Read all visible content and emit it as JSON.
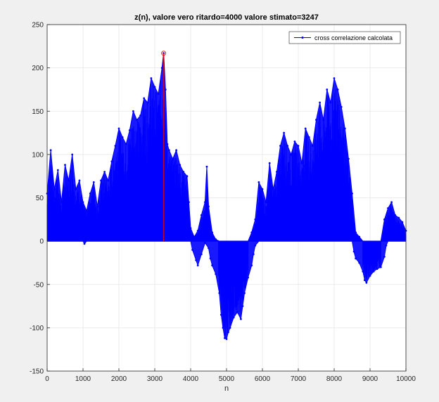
{
  "chart_data": {
    "type": "line",
    "title": "z(n), valore vero ritardo=4000 valore stimato=3247",
    "xlabel": "n",
    "ylabel": "",
    "xlim": [
      0,
      10000
    ],
    "ylim": [
      -150,
      250
    ],
    "xticks": [
      "0",
      "1000",
      "2000",
      "3000",
      "4000",
      "5000",
      "6000",
      "7000",
      "8000",
      "9000",
      "10000"
    ],
    "yticks": [
      "250",
      "200",
      "150",
      "100",
      "50",
      "0",
      "-50",
      "-100",
      "-150"
    ],
    "grid": true,
    "legend_position": "top-right",
    "series": [
      {
        "name": "cross correlazione calcolata",
        "color": "#0000ff",
        "marker": "dot",
        "style": "stem",
        "envelope_top": [
          [
            0,
            55
          ],
          [
            100,
            105
          ],
          [
            200,
            60
          ],
          [
            300,
            82
          ],
          [
            400,
            45
          ],
          [
            500,
            88
          ],
          [
            600,
            70
          ],
          [
            700,
            100
          ],
          [
            800,
            60
          ],
          [
            900,
            70
          ],
          [
            1000,
            45
          ],
          [
            1100,
            35
          ],
          [
            1200,
            55
          ],
          [
            1300,
            68
          ],
          [
            1400,
            40
          ],
          [
            1500,
            70
          ],
          [
            1600,
            80
          ],
          [
            1700,
            70
          ],
          [
            1800,
            92
          ],
          [
            1900,
            110
          ],
          [
            2000,
            130
          ],
          [
            2100,
            120
          ],
          [
            2200,
            112
          ],
          [
            2300,
            128
          ],
          [
            2400,
            150
          ],
          [
            2500,
            140
          ],
          [
            2600,
            145
          ],
          [
            2700,
            165
          ],
          [
            2800,
            160
          ],
          [
            2900,
            188
          ],
          [
            3000,
            178
          ],
          [
            3100,
            170
          ],
          [
            3200,
            200
          ],
          [
            3247,
            217
          ],
          [
            3300,
            175
          ],
          [
            3350,
            112
          ],
          [
            3400,
            105
          ],
          [
            3500,
            95
          ],
          [
            3600,
            105
          ],
          [
            3700,
            88
          ],
          [
            3800,
            80
          ],
          [
            3900,
            75
          ],
          [
            3950,
            45
          ],
          [
            4000,
            15
          ],
          [
            4100,
            5
          ],
          [
            4200,
            12
          ],
          [
            4300,
            30
          ],
          [
            4400,
            45
          ],
          [
            4450,
            86
          ],
          [
            4500,
            40
          ],
          [
            4600,
            10
          ],
          [
            4700,
            2
          ],
          [
            4800,
            0
          ],
          [
            4900,
            0
          ],
          [
            5000,
            0
          ],
          [
            5100,
            0
          ],
          [
            5200,
            0
          ],
          [
            5300,
            0
          ],
          [
            5400,
            0
          ],
          [
            5500,
            0
          ],
          [
            5600,
            0
          ],
          [
            5700,
            10
          ],
          [
            5800,
            25
          ],
          [
            5900,
            68
          ],
          [
            6000,
            60
          ],
          [
            6100,
            45
          ],
          [
            6200,
            90
          ],
          [
            6300,
            60
          ],
          [
            6400,
            80
          ],
          [
            6500,
            110
          ],
          [
            6600,
            125
          ],
          [
            6700,
            110
          ],
          [
            6800,
            100
          ],
          [
            6900,
            115
          ],
          [
            7000,
            110
          ],
          [
            7100,
            90
          ],
          [
            7200,
            130
          ],
          [
            7300,
            120
          ],
          [
            7400,
            110
          ],
          [
            7500,
            140
          ],
          [
            7600,
            160
          ],
          [
            7700,
            140
          ],
          [
            7800,
            175
          ],
          [
            7900,
            160
          ],
          [
            8000,
            188
          ],
          [
            8100,
            175
          ],
          [
            8200,
            155
          ],
          [
            8300,
            130
          ],
          [
            8400,
            95
          ],
          [
            8500,
            55
          ],
          [
            8600,
            10
          ],
          [
            8700,
            5
          ],
          [
            8800,
            0
          ],
          [
            8900,
            0
          ],
          [
            9000,
            0
          ],
          [
            9100,
            0
          ],
          [
            9200,
            0
          ],
          [
            9300,
            0
          ],
          [
            9400,
            25
          ],
          [
            9500,
            38
          ],
          [
            9600,
            45
          ],
          [
            9700,
            30
          ],
          [
            9800,
            27
          ],
          [
            9900,
            22
          ],
          [
            10000,
            12
          ]
        ],
        "envelope_bottom": [
          [
            0,
            0
          ],
          [
            1000,
            0
          ],
          [
            1040,
            -3
          ],
          [
            1100,
            0
          ],
          [
            2000,
            0
          ],
          [
            3000,
            0
          ],
          [
            4000,
            0
          ],
          [
            4050,
            -10
          ],
          [
            4150,
            -22
          ],
          [
            4200,
            -28
          ],
          [
            4300,
            -15
          ],
          [
            4400,
            -2
          ],
          [
            4500,
            -8
          ],
          [
            4550,
            -20
          ],
          [
            4600,
            -28
          ],
          [
            4700,
            -38
          ],
          [
            4800,
            -60
          ],
          [
            4850,
            -85
          ],
          [
            4900,
            -100
          ],
          [
            4950,
            -112
          ],
          [
            5000,
            -113
          ],
          [
            5050,
            -105
          ],
          [
            5100,
            -100
          ],
          [
            5200,
            -88
          ],
          [
            5300,
            -82
          ],
          [
            5400,
            -90
          ],
          [
            5450,
            -75
          ],
          [
            5500,
            -60
          ],
          [
            5600,
            -42
          ],
          [
            5700,
            -28
          ],
          [
            5750,
            -15
          ],
          [
            5800,
            -5
          ],
          [
            5900,
            0
          ],
          [
            8500,
            0
          ],
          [
            8550,
            -12
          ],
          [
            8600,
            -20
          ],
          [
            8700,
            -25
          ],
          [
            8800,
            -35
          ],
          [
            8850,
            -45
          ],
          [
            8900,
            -48
          ],
          [
            9000,
            -40
          ],
          [
            9100,
            -35
          ],
          [
            9200,
            -32
          ],
          [
            9300,
            -30
          ],
          [
            9400,
            -18
          ],
          [
            9450,
            -5
          ],
          [
            9500,
            0
          ],
          [
            10000,
            0
          ]
        ]
      }
    ],
    "estimated_peak": {
      "x": 3247,
      "y": 217,
      "color": "#ff0000",
      "marker": "circle"
    },
    "colors": {
      "figure_background": "#f0f0f0",
      "axes_background": "#ffffff",
      "grid": "#e6e6e6",
      "series": "#0000ff",
      "peak": "#ff0000"
    }
  }
}
